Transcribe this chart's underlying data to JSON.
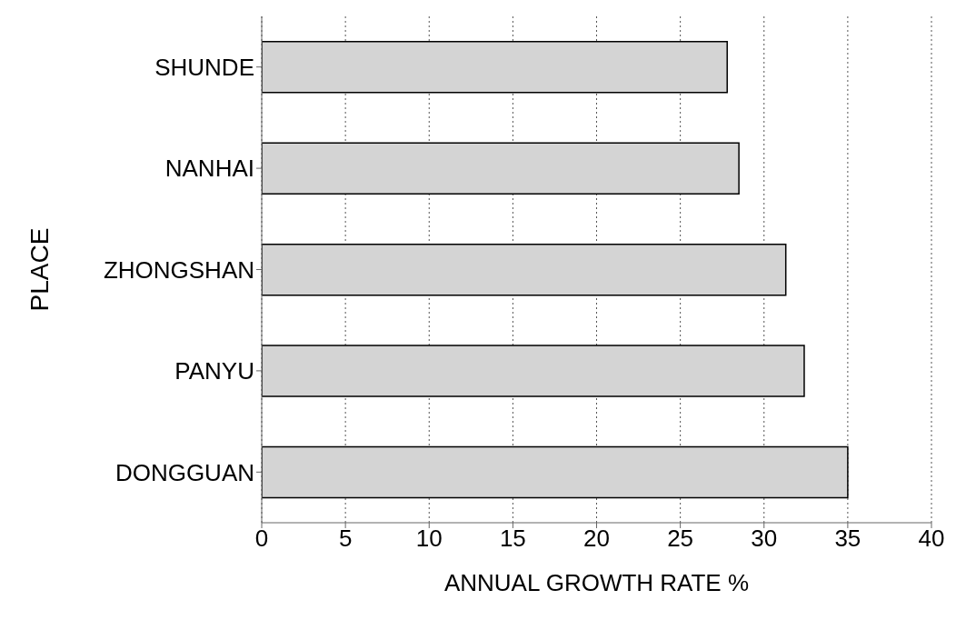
{
  "chart_data": {
    "type": "bar",
    "orientation": "horizontal",
    "xlabel": "ANNUAL GROWTH RATE %",
    "ylabel": "PLACE",
    "categories": [
      "SHUNDE",
      "NANHAI",
      "ZHONGSHAN",
      "PANYU",
      "DONGGUAN"
    ],
    "values": [
      27.8,
      28.5,
      31.3,
      32.4,
      35.0
    ],
    "color": "#d4d4d4",
    "xlim": [
      0,
      40
    ],
    "xticks": [
      0,
      5,
      10,
      15,
      20,
      25,
      30,
      35,
      40
    ],
    "grid": "x"
  }
}
